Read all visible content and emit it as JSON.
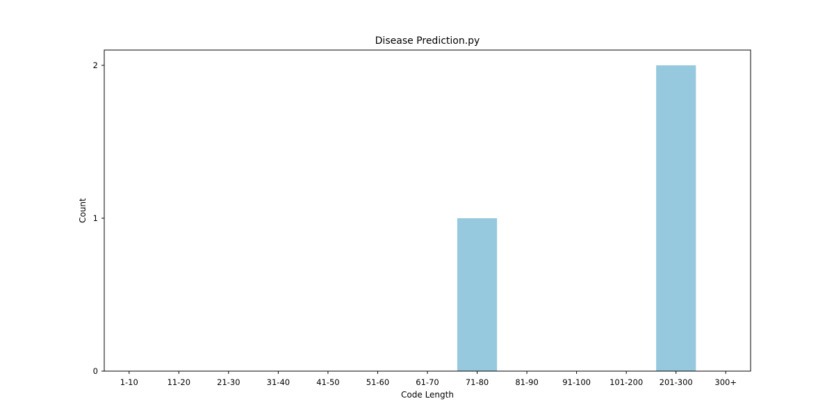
{
  "chart_data": {
    "type": "bar",
    "title": "Disease Prediction.py",
    "xlabel": "Code Length",
    "ylabel": "Count",
    "categories": [
      "1-10",
      "11-20",
      "21-30",
      "31-40",
      "41-50",
      "51-60",
      "61-70",
      "71-80",
      "81-90",
      "91-100",
      "101-200",
      "201-300",
      "300+"
    ],
    "values": [
      0,
      0,
      0,
      0,
      0,
      0,
      0,
      1,
      0,
      0,
      0,
      2,
      0
    ],
    "yticks": [
      "0",
      "1",
      "2"
    ],
    "ylim": [
      0,
      2.1
    ],
    "grid": false,
    "bar_color": "#96c9de"
  }
}
